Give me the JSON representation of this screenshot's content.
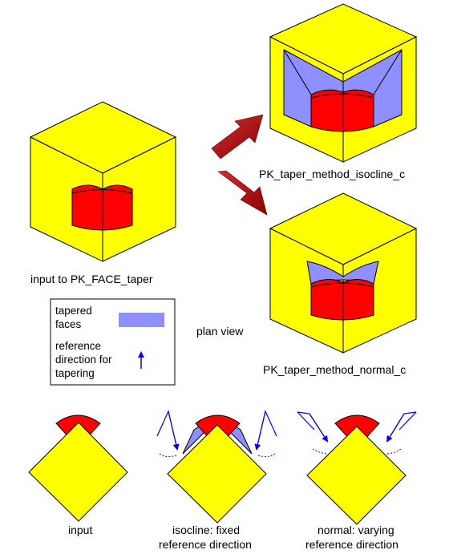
{
  "labels": {
    "input_cube": "input to PK_FACE_taper",
    "isocline_cube": "PK_taper_method_isocline_c",
    "normal_cube": "PK_taper_method_normal_c",
    "plan_view": "plan view"
  },
  "legend": {
    "tapered_line1": "tapered",
    "tapered_line2": "faces",
    "ref_line1": "reference",
    "ref_line2": "direction for",
    "ref_line3": "tapering"
  },
  "plan": {
    "input_line1": "input",
    "isocline_line1": "isocline: fixed",
    "isocline_line2": "reference direction",
    "normal_line1": "normal: varying",
    "normal_line2": "reference direction"
  },
  "colors": {
    "cube_yellow": "#ffff00",
    "boss_red": "#ff0000",
    "taper_blue": "#8f8fff",
    "arrow_dark_red": "#a50000",
    "ref_arrow_blue": "#0000ff"
  }
}
